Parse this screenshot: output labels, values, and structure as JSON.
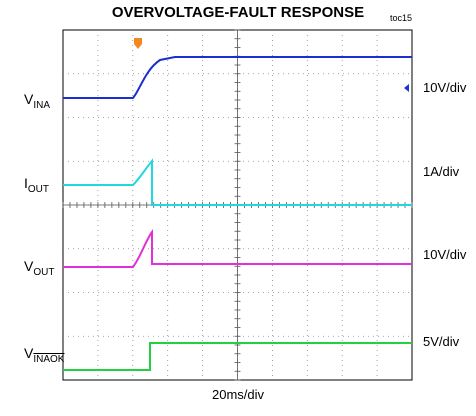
{
  "header": {
    "title": "OVERVOLTAGE-FAULT RESPONSE",
    "tag": "toc15"
  },
  "channels": [
    {
      "label": "V",
      "sub": "INA",
      "scale": "10V/div"
    },
    {
      "label": "I",
      "sub": "OUT",
      "scale": "1A/div"
    },
    {
      "label": "V",
      "sub": "OUT",
      "scale": "10V/div"
    },
    {
      "label": "V",
      "sub": "INAOK",
      "scale": "5V/div"
    }
  ],
  "timebase": "20ms/div"
}
